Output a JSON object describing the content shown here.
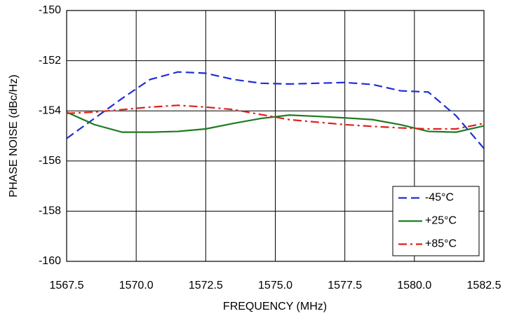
{
  "chart_data": {
    "type": "line",
    "xlabel": "FREQUENCY (MHz)",
    "ylabel": "PHASE NOISE  (dBc/Hz)",
    "x": [
      1567.5,
      1568.5,
      1569.5,
      1570.5,
      1571.5,
      1572.5,
      1573.5,
      1574.5,
      1575.5,
      1576.5,
      1577.5,
      1578.5,
      1579.5,
      1580.5,
      1581.5,
      1582.5
    ],
    "series": [
      {
        "name": "-45°C",
        "color": "#1f2fd6",
        "dash": "dashed",
        "values": [
          -155.1,
          -154.3,
          -153.5,
          -152.75,
          -152.45,
          -152.5,
          -152.75,
          -152.9,
          -152.93,
          -152.9,
          -152.87,
          -152.95,
          -153.2,
          -153.25,
          -154.2,
          -155.5
        ]
      },
      {
        "name": "+25°C",
        "color": "#1f7a1f",
        "dash": "solid",
        "values": [
          -154.05,
          -154.55,
          -154.85,
          -154.85,
          -154.82,
          -154.72,
          -154.5,
          -154.3,
          -154.17,
          -154.22,
          -154.28,
          -154.35,
          -154.55,
          -154.82,
          -154.85,
          -154.6
        ]
      },
      {
        "name": "+85°C",
        "color": "#e0201b",
        "dash": "dashdot",
        "values": [
          -154.1,
          -154.05,
          -153.95,
          -153.85,
          -153.78,
          -153.85,
          -153.95,
          -154.15,
          -154.35,
          -154.45,
          -154.55,
          -154.62,
          -154.68,
          -154.72,
          -154.72,
          -154.5
        ]
      }
    ],
    "xlim": [
      1567.5,
      1582.5
    ],
    "xticks": [
      1567.5,
      {
        "value": 1570,
        "label": "1570.0"
      },
      1572.5,
      {
        "value": 1575,
        "label": "1575.0"
      },
      1577.5,
      {
        "value": 1580,
        "label": "1580.0"
      },
      1582.5
    ],
    "ylim": [
      -160,
      -150
    ],
    "yticks": [
      -160,
      -158,
      -156,
      -154,
      -152,
      -150
    ],
    "grid": true,
    "legend": "lower right"
  }
}
